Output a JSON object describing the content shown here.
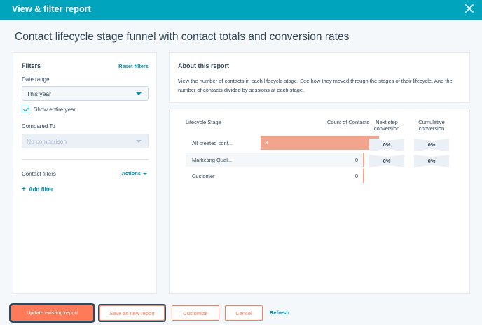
{
  "window": {
    "title": "View & filter report"
  },
  "heading": "Contact lifecycle stage funnel with contact totals and conversion rates",
  "filters": {
    "title": "Filters",
    "reset_label": "Reset filters",
    "date_range": {
      "label": "Date range",
      "value": "This year"
    },
    "show_entire_year": {
      "label": "Show entire year",
      "checked": true
    },
    "compared_to": {
      "label": "Compared To",
      "placeholder": "No comparison"
    },
    "contact_filters": {
      "label": "Contact filters",
      "actions_label": "Actions",
      "add_filter_label": "Add filter"
    }
  },
  "about": {
    "title": "About this report",
    "description": "View the number of contacts in each lifecycle stage. See how they moved through the stages of their lifecycle. And the number of contacts divided by sessions at each stage."
  },
  "report": {
    "headers": {
      "stage": "Lifecycle Stage",
      "count": "Count of Contacts",
      "next_step": "Next step conversion",
      "cumulative": "Cumulative conversion"
    },
    "rows": [
      {
        "stage": "All created cont...",
        "count": "3",
        "count_value": 3
      },
      {
        "stage": "Marketing Qual...",
        "count": "0",
        "count_value": 0
      },
      {
        "stage": "Customer",
        "count": "0",
        "count_value": 0
      }
    ],
    "conversions": [
      {
        "next_step": "0%",
        "cumulative": "0%"
      },
      {
        "next_step": "0%",
        "cumulative": "0%"
      }
    ],
    "bar_color": "#f2a48c"
  },
  "footer": {
    "update_label": "Update existing report",
    "save_label": "Save as new report",
    "customize_label": "Customize",
    "cancel_label": "Cancel",
    "refresh_label": "Refresh"
  },
  "colors": {
    "header": "#00a4bd",
    "accent": "#ff7a59",
    "link": "#0091ae",
    "text": "#33475b"
  },
  "icons": {
    "close": "close-icon",
    "dropdown": "chevron-down-icon",
    "check": "check-icon",
    "add": "plus-icon"
  }
}
